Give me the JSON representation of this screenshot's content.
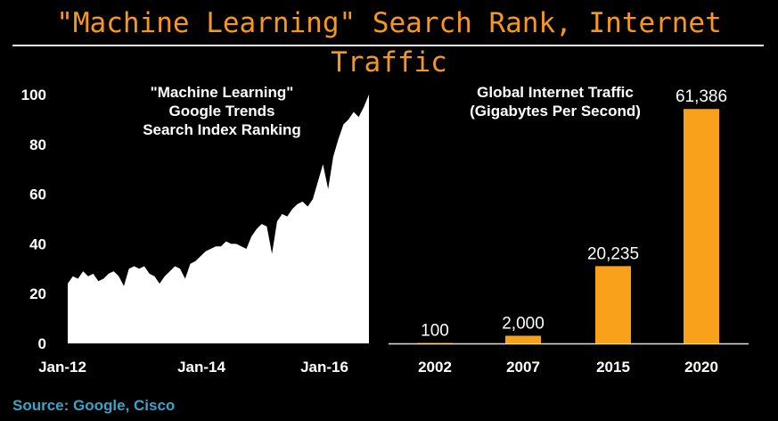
{
  "header": {
    "title": "\"Machine Learning\" Search Rank, Internet Traffic"
  },
  "footer": {
    "source": "Source: Google, Cisco"
  },
  "colors": {
    "accent": "#f7981d",
    "bars": "#f9a11b",
    "area": "#ffffff",
    "source": "#3aa3c9"
  },
  "chart_data": [
    {
      "type": "area",
      "title": "\"Machine Learning\"\nGoogle Trends\nSearch Index Ranking",
      "xlabel": "",
      "ylabel": "",
      "ylim": [
        0,
        100
      ],
      "yticks": [
        "0",
        "20",
        "40",
        "60",
        "80",
        "100"
      ],
      "xticks": [
        "Jan-12",
        "Jan-14",
        "Jan-16"
      ],
      "xrange": [
        "2012-01",
        "2016-12"
      ],
      "grid": false,
      "series": [
        {
          "values": [
            [
              "2012-01",
              24
            ],
            [
              "2012-02",
              27
            ],
            [
              "2012-03",
              26
            ],
            [
              "2012-04",
              29
            ],
            [
              "2012-05",
              27
            ],
            [
              "2012-06",
              28
            ],
            [
              "2012-07",
              25
            ],
            [
              "2012-08",
              26
            ],
            [
              "2012-09",
              28
            ],
            [
              "2012-10",
              29
            ],
            [
              "2012-11",
              27
            ],
            [
              "2012-12",
              23
            ],
            [
              "2013-01",
              30
            ],
            [
              "2013-02",
              31
            ],
            [
              "2013-03",
              30
            ],
            [
              "2013-04",
              31
            ],
            [
              "2013-05",
              28
            ],
            [
              "2013-06",
              27
            ],
            [
              "2013-07",
              24
            ],
            [
              "2013-08",
              27
            ],
            [
              "2013-09",
              29
            ],
            [
              "2013-10",
              31
            ],
            [
              "2013-11",
              30
            ],
            [
              "2013-12",
              26
            ],
            [
              "2014-01",
              32
            ],
            [
              "2014-02",
              33
            ],
            [
              "2014-03",
              35
            ],
            [
              "2014-04",
              37
            ],
            [
              "2014-05",
              38
            ],
            [
              "2014-06",
              39
            ],
            [
              "2014-07",
              39
            ],
            [
              "2014-08",
              41
            ],
            [
              "2014-09",
              40
            ],
            [
              "2014-10",
              40
            ],
            [
              "2014-11",
              39
            ],
            [
              "2014-12",
              38
            ],
            [
              "2015-01",
              43
            ],
            [
              "2015-02",
              46
            ],
            [
              "2015-03",
              48
            ],
            [
              "2015-04",
              47
            ],
            [
              "2015-05",
              36
            ],
            [
              "2015-06",
              49
            ],
            [
              "2015-07",
              52
            ],
            [
              "2015-08",
              51
            ],
            [
              "2015-09",
              54
            ],
            [
              "2015-10",
              56
            ],
            [
              "2015-11",
              57
            ],
            [
              "2015-12",
              55
            ],
            [
              "2016-01",
              58
            ],
            [
              "2016-02",
              65
            ],
            [
              "2016-03",
              72
            ],
            [
              "2016-04",
              62
            ],
            [
              "2016-05",
              75
            ],
            [
              "2016-06",
              82
            ],
            [
              "2016-07",
              88
            ],
            [
              "2016-08",
              90
            ],
            [
              "2016-09",
              93
            ],
            [
              "2016-10",
              91
            ],
            [
              "2016-11",
              95
            ],
            [
              "2016-12",
              100
            ]
          ]
        }
      ]
    },
    {
      "type": "bar",
      "title": "Global Internet Traffic\n(Gigabytes Per Second)",
      "xlabel": "",
      "ylabel": "",
      "ylim": [
        0,
        64000
      ],
      "grid": false,
      "categories": [
        "2002",
        "2007",
        "2015",
        "2020"
      ],
      "values": [
        100,
        2000,
        20235,
        61386
      ],
      "value_labels": [
        "100",
        "2,000",
        "20,235",
        "61,386"
      ]
    }
  ]
}
